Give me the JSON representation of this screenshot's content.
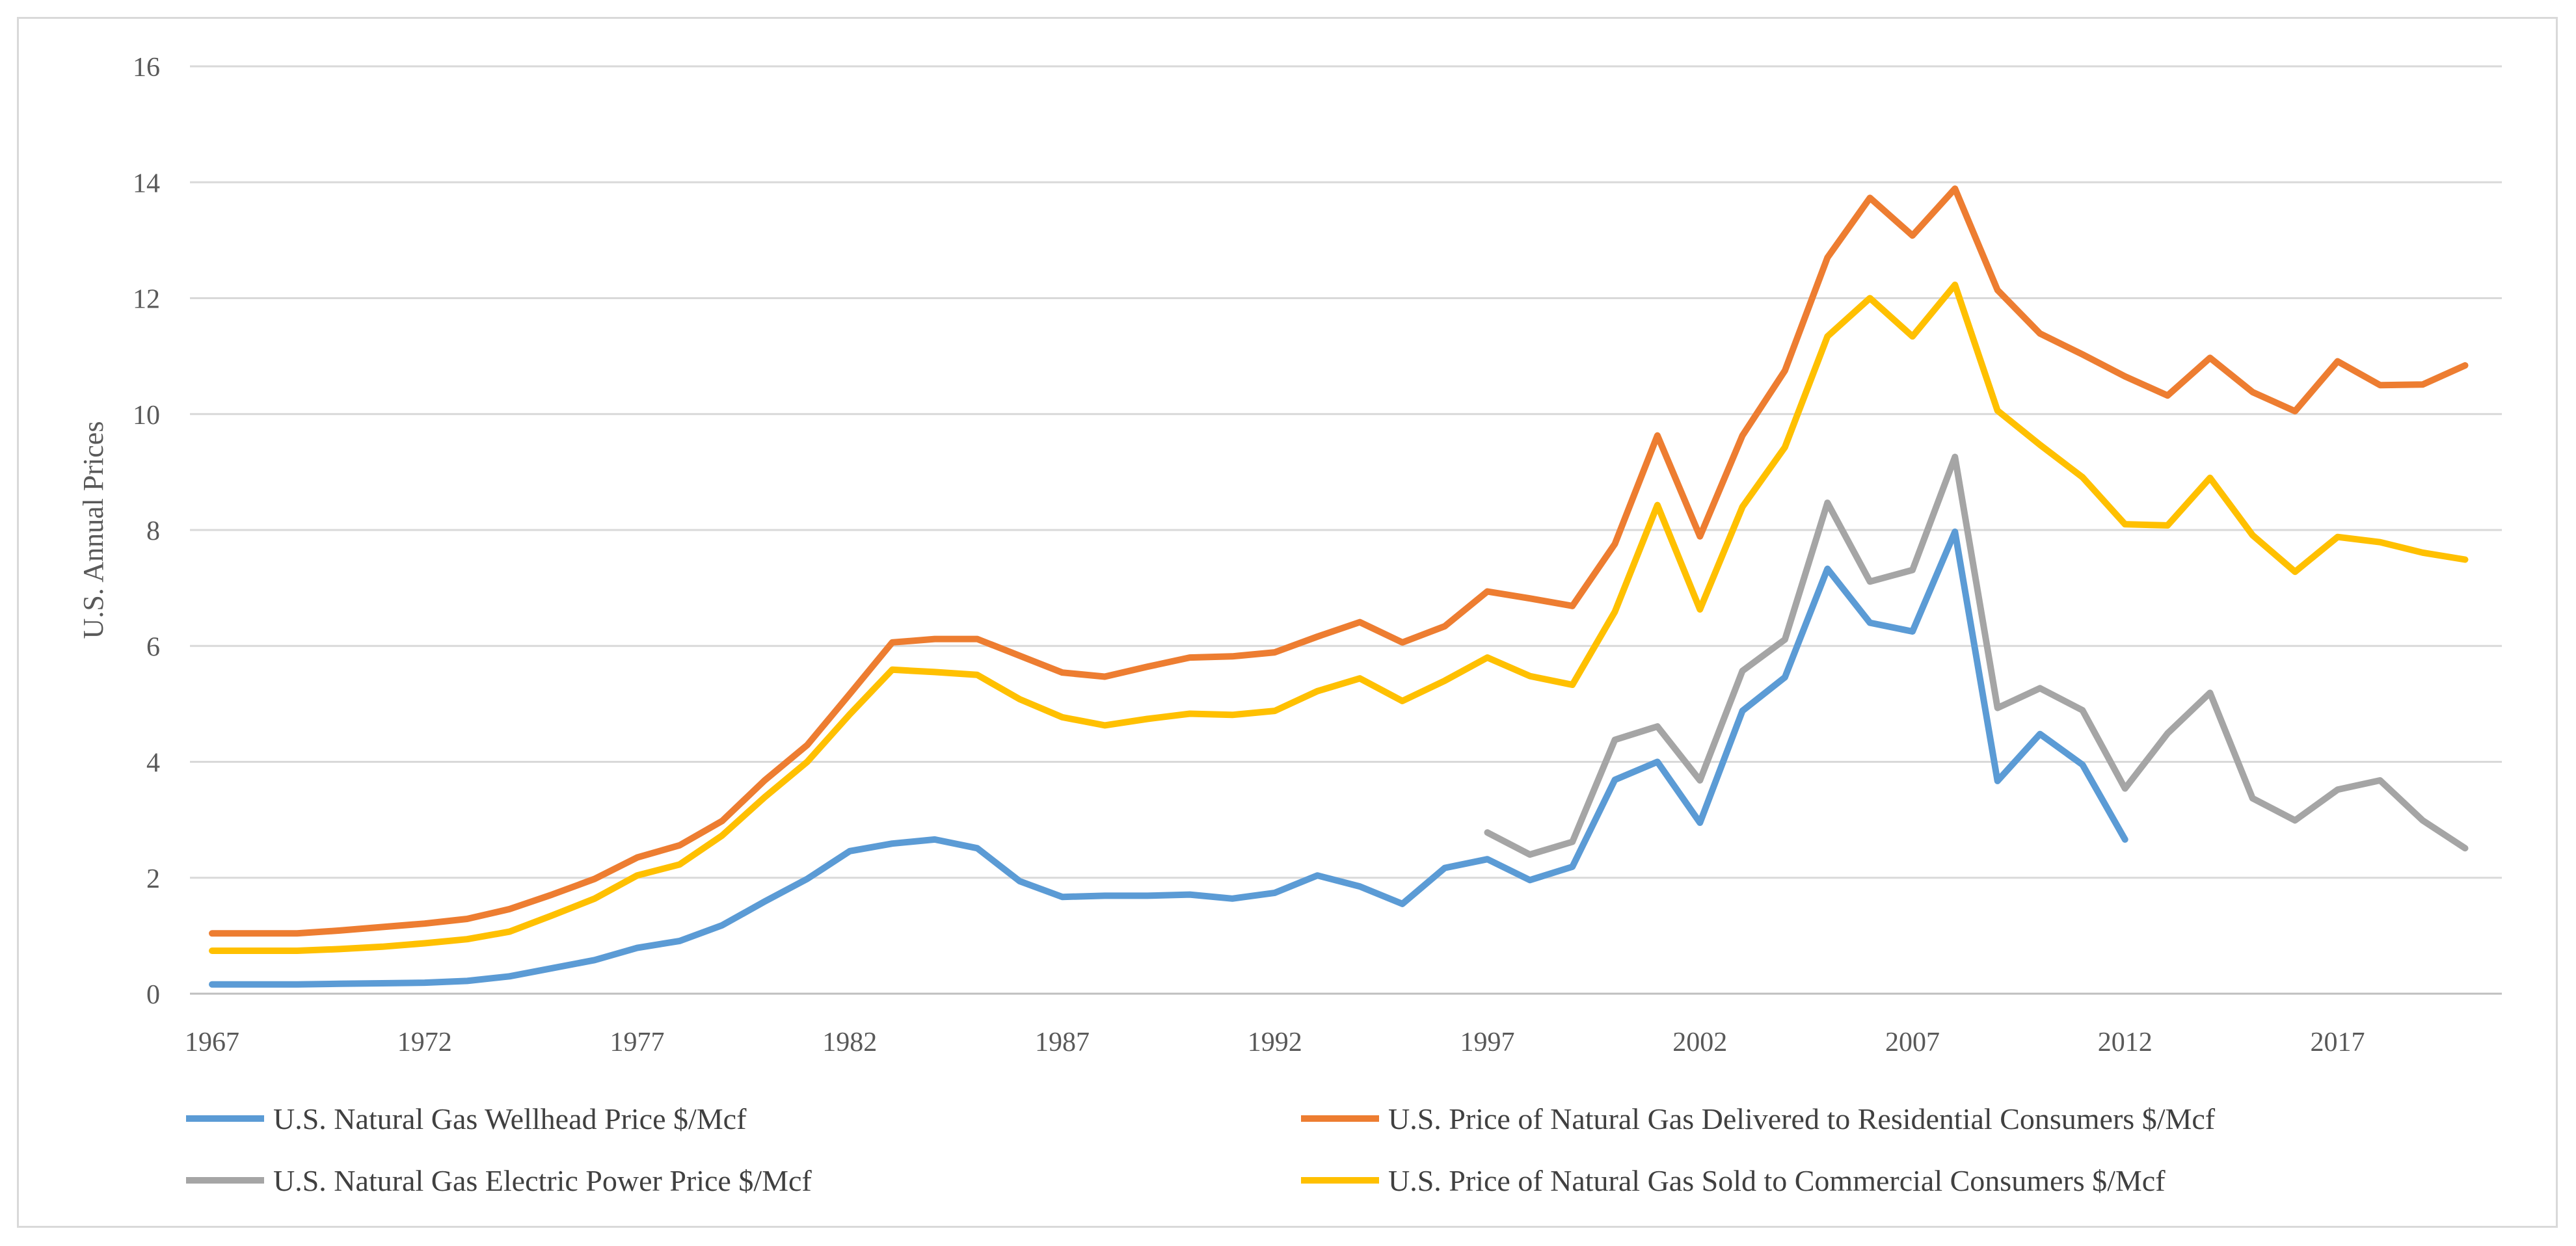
{
  "chart_data": {
    "type": "line",
    "ylabel": "U.S. Annual Prices",
    "ylim": [
      0,
      16
    ],
    "yticks": [
      0,
      2,
      4,
      6,
      8,
      10,
      12,
      14,
      16
    ],
    "xlim": [
      1967,
      2020
    ],
    "xticks": [
      1967,
      1972,
      1977,
      1982,
      1987,
      1992,
      1997,
      2002,
      2007,
      2012,
      2017
    ],
    "grid": "horizontal",
    "legend_position": "bottom",
    "series": [
      {
        "name": "U.S. Natural Gas Wellhead Price $/Mcf",
        "color": "#5b9bd5",
        "x": [
          1967,
          1968,
          1969,
          1970,
          1971,
          1972,
          1973,
          1974,
          1975,
          1976,
          1977,
          1978,
          1979,
          1980,
          1981,
          1982,
          1983,
          1984,
          1985,
          1986,
          1987,
          1988,
          1989,
          1990,
          1991,
          1992,
          1993,
          1994,
          1995,
          1996,
          1997,
          1998,
          1999,
          2000,
          2001,
          2002,
          2003,
          2004,
          2005,
          2006,
          2007,
          2008,
          2009,
          2010,
          2011,
          2012
        ],
        "values": [
          0.16,
          0.16,
          0.16,
          0.17,
          0.18,
          0.19,
          0.22,
          0.3,
          0.44,
          0.58,
          0.79,
          0.91,
          1.18,
          1.59,
          1.98,
          2.46,
          2.59,
          2.66,
          2.51,
          1.94,
          1.67,
          1.69,
          1.69,
          1.71,
          1.64,
          1.74,
          2.04,
          1.85,
          1.55,
          2.17,
          2.32,
          1.96,
          2.19,
          3.69,
          4.0,
          2.95,
          4.88,
          5.46,
          7.33,
          6.4,
          6.25,
          7.97,
          3.67,
          4.48,
          3.95,
          2.66
        ]
      },
      {
        "name": "U.S. Price of Natural Gas Delivered to Residential Consumers $/Mcf",
        "color": "#ed7d31",
        "x": [
          1967,
          1968,
          1969,
          1970,
          1971,
          1972,
          1973,
          1974,
          1975,
          1976,
          1977,
          1978,
          1979,
          1980,
          1981,
          1982,
          1983,
          1984,
          1985,
          1986,
          1987,
          1988,
          1989,
          1990,
          1991,
          1992,
          1993,
          1994,
          1995,
          1996,
          1997,
          1998,
          1999,
          2000,
          2001,
          2002,
          2003,
          2004,
          2005,
          2006,
          2007,
          2008,
          2009,
          2010,
          2011,
          2012,
          2013,
          2014,
          2015,
          2016,
          2017,
          2018,
          2019,
          2020
        ],
        "values": [
          1.04,
          1.04,
          1.04,
          1.09,
          1.15,
          1.21,
          1.29,
          1.46,
          1.71,
          1.98,
          2.35,
          2.56,
          2.98,
          3.68,
          4.29,
          5.17,
          6.06,
          6.12,
          6.12,
          5.83,
          5.54,
          5.47,
          5.64,
          5.8,
          5.82,
          5.89,
          6.16,
          6.41,
          6.06,
          6.34,
          6.94,
          6.82,
          6.69,
          7.76,
          9.63,
          7.89,
          9.63,
          10.75,
          12.7,
          13.73,
          13.08,
          13.89,
          12.14,
          11.39,
          11.03,
          10.65,
          10.32,
          10.97,
          10.38,
          10.05,
          10.91,
          10.5,
          10.51,
          10.84
        ]
      },
      {
        "name": "U.S. Natural Gas Electric Power Price $/Mcf",
        "color": "#a5a5a5",
        "x": [
          1997,
          1998,
          1999,
          2000,
          2001,
          2002,
          2003,
          2004,
          2005,
          2006,
          2007,
          2008,
          2009,
          2010,
          2011,
          2012,
          2013,
          2014,
          2015,
          2016,
          2017,
          2018,
          2019,
          2020
        ],
        "values": [
          2.78,
          2.4,
          2.62,
          4.38,
          4.61,
          3.68,
          5.57,
          6.11,
          8.47,
          7.11,
          7.31,
          9.26,
          4.93,
          5.27,
          4.89,
          3.54,
          4.49,
          5.19,
          3.37,
          2.99,
          3.52,
          3.68,
          2.99,
          2.51
        ]
      },
      {
        "name": "U.S. Price of Natural Gas Sold to Commercial Consumers $/Mcf",
        "color": "#ffc000",
        "x": [
          1967,
          1968,
          1969,
          1970,
          1971,
          1972,
          1973,
          1974,
          1975,
          1976,
          1977,
          1978,
          1979,
          1980,
          1981,
          1982,
          1983,
          1984,
          1985,
          1986,
          1987,
          1988,
          1989,
          1990,
          1991,
          1992,
          1993,
          1994,
          1995,
          1996,
          1997,
          1998,
          1999,
          2000,
          2001,
          2002,
          2003,
          2004,
          2005,
          2006,
          2007,
          2008,
          2009,
          2010,
          2011,
          2012,
          2013,
          2014,
          2015,
          2016,
          2017,
          2018,
          2019,
          2020
        ],
        "values": [
          0.74,
          0.74,
          0.74,
          0.77,
          0.81,
          0.87,
          0.94,
          1.07,
          1.35,
          1.64,
          2.04,
          2.23,
          2.73,
          3.39,
          4.0,
          4.82,
          5.59,
          5.55,
          5.5,
          5.08,
          4.77,
          4.63,
          4.74,
          4.83,
          4.81,
          4.88,
          5.22,
          5.44,
          5.05,
          5.4,
          5.8,
          5.48,
          5.33,
          6.59,
          8.43,
          6.63,
          8.4,
          9.43,
          11.34,
          12.0,
          11.34,
          12.23,
          10.06,
          9.47,
          8.91,
          8.1,
          8.08,
          8.9,
          7.91,
          7.28,
          7.88,
          7.79,
          7.61,
          7.49
        ]
      }
    ]
  }
}
